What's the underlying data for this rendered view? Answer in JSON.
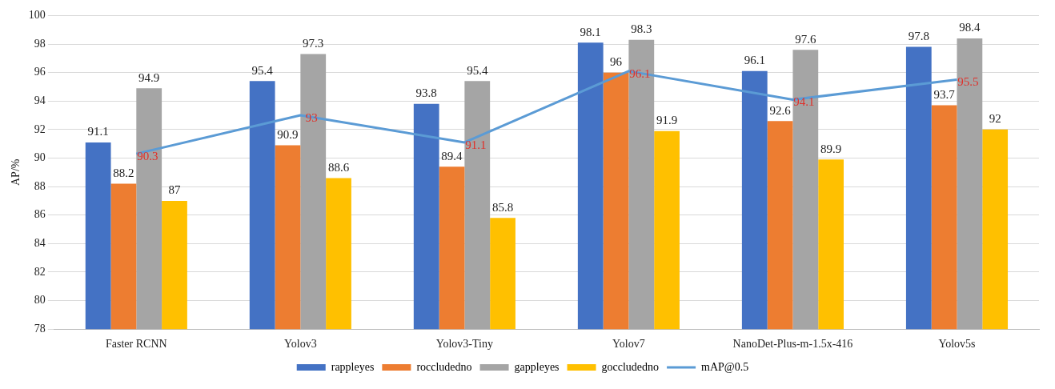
{
  "chart_data": {
    "type": "bar",
    "ylabel": "AP/%",
    "categories": [
      "Faster RCNN",
      "Yolov3",
      "Yolov3-Tiny",
      "Yolov7",
      "NanoDet-Plus-m-1.5x-416",
      "Yolov5s"
    ],
    "series": [
      {
        "name": "rappleyes",
        "color": "#4472c4",
        "values": [
          91.1,
          95.4,
          93.8,
          98.1,
          96.1,
          97.8
        ]
      },
      {
        "name": "roccludedno",
        "color": "#ed7d31",
        "values": [
          88.2,
          90.9,
          89.4,
          96,
          92.6,
          93.7
        ]
      },
      {
        "name": "gappleyes",
        "color": "#a5a5a5",
        "values": [
          94.9,
          97.3,
          95.4,
          98.3,
          97.6,
          98.4
        ]
      },
      {
        "name": "goccludedno",
        "color": "#ffc000",
        "values": [
          87,
          88.6,
          85.8,
          91.9,
          89.9,
          92
        ]
      },
      {
        "name": "mAP@0.5",
        "type": "line",
        "color": "#5b9bd5",
        "values": [
          90.3,
          93,
          91.1,
          96.1,
          94.1,
          95.5
        ]
      }
    ],
    "ylim": [
      78,
      100
    ],
    "yticks": [
      78,
      80,
      82,
      84,
      86,
      88,
      90,
      92,
      94,
      96,
      98,
      100
    ],
    "grid": "y",
    "legend": "bottom",
    "data_labels": true,
    "marker": "none"
  }
}
